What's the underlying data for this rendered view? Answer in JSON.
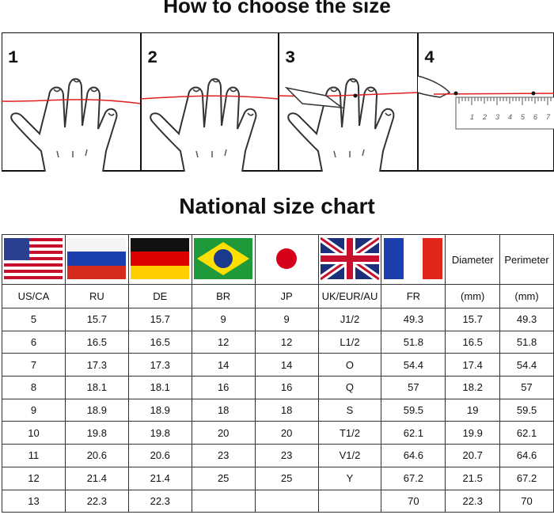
{
  "header": {
    "title": "How to choose the size"
  },
  "steps": [
    {
      "label": "1"
    },
    {
      "label": "2"
    },
    {
      "label": "3"
    },
    {
      "label": "4"
    }
  ],
  "ruler": {
    "labels": [
      "1",
      "2",
      "3",
      "4",
      "5",
      "6",
      "7"
    ]
  },
  "chart_heading": "National size chart",
  "table": {
    "flag_row_labels": [
      "Diameter",
      "Perimeter"
    ],
    "columns": [
      "US/CA",
      "RU",
      "DE",
      "BR",
      "JP",
      "UK/EUR/AU",
      "FR",
      "(mm)",
      "(mm)"
    ],
    "rows": [
      [
        "5",
        "15.7",
        "15.7",
        "9",
        "9",
        "J1/2",
        "49.3",
        "15.7",
        "49.3"
      ],
      [
        "6",
        "16.5",
        "16.5",
        "12",
        "12",
        "L1/2",
        "51.8",
        "16.5",
        "51.8"
      ],
      [
        "7",
        "17.3",
        "17.3",
        "14",
        "14",
        "O",
        "54.4",
        "17.4",
        "54.4"
      ],
      [
        "8",
        "18.1",
        "18.1",
        "16",
        "16",
        "Q",
        "57",
        "18.2",
        "57"
      ],
      [
        "9",
        "18.9",
        "18.9",
        "18",
        "18",
        "S",
        "59.5",
        "19",
        "59.5"
      ],
      [
        "10",
        "19.8",
        "19.8",
        "20",
        "20",
        "T1/2",
        "62.1",
        "19.9",
        "62.1"
      ],
      [
        "11",
        "20.6",
        "20.6",
        "23",
        "23",
        "V1/2",
        "64.6",
        "20.7",
        "64.6"
      ],
      [
        "12",
        "21.4",
        "21.4",
        "25",
        "25",
        "Y",
        "67.2",
        "21.5",
        "67.2"
      ],
      [
        "13",
        "22.3",
        "22.3",
        null,
        null,
        null,
        "70",
        "22.3",
        "70"
      ]
    ]
  }
}
